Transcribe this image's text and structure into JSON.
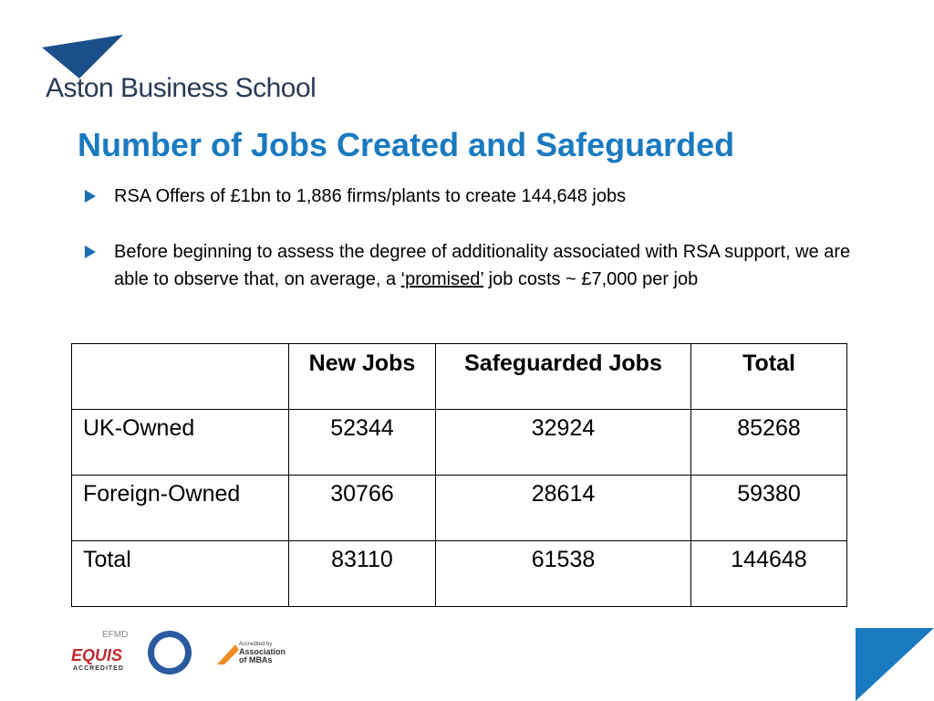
{
  "header": {
    "school": "Aston Business School"
  },
  "title": "Number of Jobs Created and Safeguarded",
  "bullets": [
    {
      "parts": [
        "RSA Offers of £1bn to 1,886 firms/plants to create 144,648 jobs"
      ]
    },
    {
      "parts": [
        "Before beginning to assess the degree of additionality associated with RSA support, we are able to observe that, on average, a ",
        "‘promised’",
        " job costs ~ £7,000 per job"
      ]
    }
  ],
  "table": {
    "header": [
      "",
      "New Jobs",
      "Safeguarded Jobs",
      "Total"
    ],
    "rows": [
      [
        "UK-Owned",
        52344,
        32924,
        85268
      ],
      [
        "Foreign-Owned",
        30766,
        28614,
        59380
      ],
      [
        "Total",
        83110,
        61538,
        144648
      ]
    ]
  },
  "footer": {
    "efmd": "EFMD",
    "equis": "EQUIS",
    "accredited": "ACCREDITED",
    "amba_small": "Accredited by",
    "amba": "Association of MBAs"
  }
}
